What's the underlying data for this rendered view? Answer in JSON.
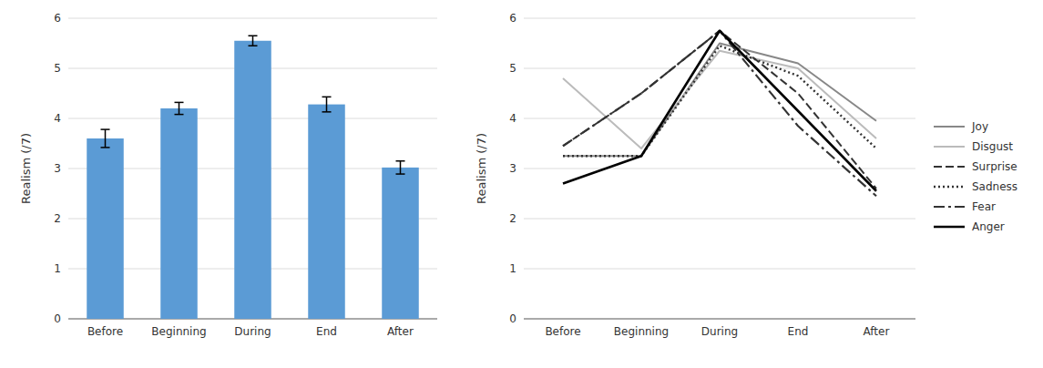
{
  "chart_data": [
    {
      "type": "bar",
      "categories": [
        "Before",
        "Beginning",
        "During",
        "End",
        "After"
      ],
      "values": [
        3.6,
        4.2,
        5.55,
        4.28,
        3.02
      ],
      "errors": [
        0.18,
        0.12,
        0.1,
        0.15,
        0.13
      ],
      "color": "#5B9BD5",
      "ylabel": "Realism (/7)",
      "ylim": [
        0,
        6
      ],
      "yticks": [
        0,
        1,
        2,
        3,
        4,
        5,
        6
      ],
      "grid": true
    },
    {
      "type": "line",
      "categories": [
        "Before",
        "Beginning",
        "During",
        "End",
        "After"
      ],
      "series": [
        {
          "name": "Joy",
          "color": "#888888",
          "line_style": "solid",
          "values": [
            3.25,
            3.25,
            5.5,
            5.1,
            3.95
          ]
        },
        {
          "name": "Disgust",
          "color": "#bbbbbb",
          "line_style": "solid",
          "values": [
            4.8,
            3.4,
            5.35,
            5.0,
            3.6
          ]
        },
        {
          "name": "Surprise",
          "color": "#333333",
          "line_style": "dashed",
          "values": [
            3.45,
            4.5,
            5.75,
            4.5,
            2.6
          ]
        },
        {
          "name": "Sadness",
          "color": "#333333",
          "line_style": "dotted",
          "values": [
            3.25,
            3.25,
            5.45,
            4.85,
            3.4
          ]
        },
        {
          "name": "Fear",
          "color": "#333333",
          "line_style": "dashdot",
          "values": [
            3.45,
            4.5,
            5.75,
            3.85,
            2.45
          ]
        },
        {
          "name": "Anger",
          "color": "#000000",
          "line_style": "solid",
          "values": [
            2.7,
            3.25,
            5.75,
            4.15,
            2.55
          ]
        }
      ],
      "ylabel": "Realism (/7)",
      "ylim": [
        0,
        6
      ],
      "yticks": [
        0,
        1,
        2,
        3,
        4,
        5,
        6
      ],
      "grid": true,
      "legend": "right"
    }
  ]
}
